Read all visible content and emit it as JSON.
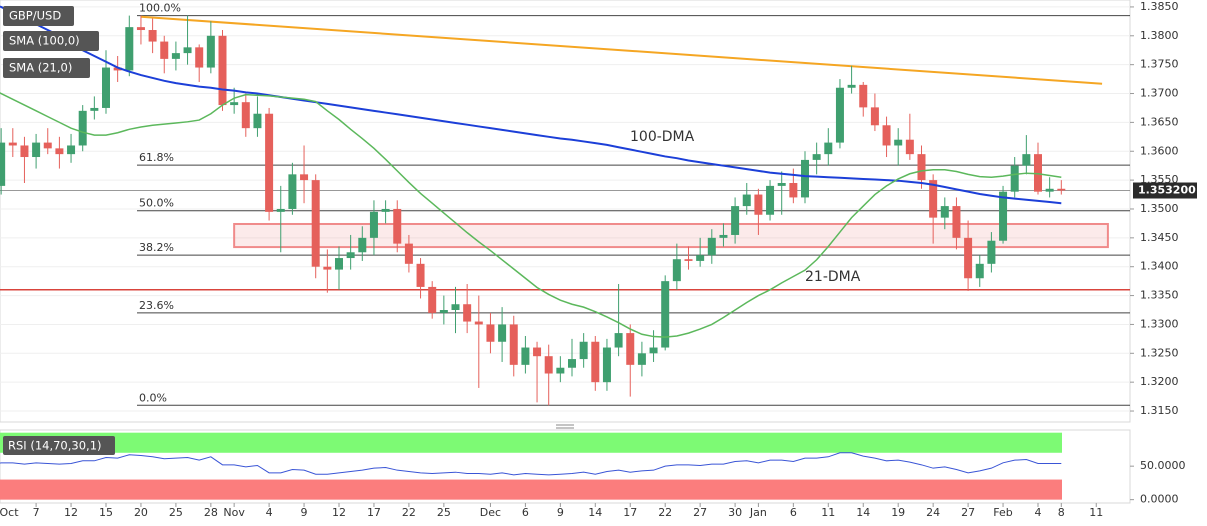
{
  "chart_data": {
    "type": "candlestick",
    "categories": [
      "Oct",
      null,
      null,
      null,
      "7",
      null,
      null,
      "12",
      null,
      null,
      "15",
      null,
      null,
      "20",
      null,
      null,
      "25",
      null,
      null,
      "28",
      null,
      "Nov",
      null,
      null,
      "4",
      null,
      null,
      "9",
      null,
      null,
      "12",
      null,
      null,
      "17",
      null,
      null,
      "22",
      null,
      null,
      "25",
      null,
      null,
      null,
      "Dec",
      null,
      null,
      "6",
      null,
      null,
      "9",
      null,
      null,
      "14",
      null,
      null,
      "17",
      null,
      null,
      "22",
      null,
      null,
      "27",
      null,
      null,
      "30",
      null,
      "Jan",
      null,
      null,
      "6",
      null,
      null,
      "11",
      null,
      null,
      "14",
      null,
      null,
      "19",
      null,
      null,
      "24",
      null,
      null,
      "27",
      null,
      null,
      "Feb",
      null,
      null,
      "4",
      null,
      "8",
      null,
      null,
      "11"
    ],
    "series": [
      {
        "name": "GBP/USD",
        "type": "candlestick",
        "up_color": "#3f9f6f",
        "down_color": "#e5605b",
        "open": [
          1.348,
          1.354,
          1.3615,
          1.361,
          1.359,
          1.3615,
          1.3605,
          1.3595,
          1.361,
          1.367,
          1.3675,
          1.3745,
          1.374,
          1.3815,
          1.381,
          1.379,
          1.376,
          1.377,
          1.378,
          1.3745,
          1.38,
          1.368,
          1.3685,
          1.364,
          1.3665,
          1.3495,
          1.35,
          1.356,
          1.355,
          1.34,
          1.3395,
          1.3415,
          1.3425,
          1.345,
          1.3495,
          1.35,
          1.344,
          1.3405,
          1.3365,
          1.332,
          1.3325,
          1.3335,
          1.3305,
          1.33,
          1.327,
          1.33,
          1.323,
          1.326,
          1.3245,
          1.3215,
          1.3225,
          1.324,
          1.327,
          1.32,
          1.326,
          1.3285,
          1.323,
          1.325,
          1.326,
          1.3375,
          1.3413,
          1.341,
          1.342,
          1.345,
          1.3455,
          1.3505,
          1.3525,
          1.349,
          1.354,
          1.3545,
          1.352,
          1.3585,
          1.3595,
          1.3615,
          1.371,
          1.3715,
          1.3676,
          1.3645,
          1.361,
          1.362,
          1.3595,
          1.355,
          1.3485,
          1.3505,
          1.345,
          1.338,
          1.3405,
          1.3445,
          1.353,
          1.3575,
          1.3595,
          1.353,
          1.3535,
          null,
          null,
          null
        ],
        "high": [
          1.3565,
          1.364,
          1.364,
          1.3625,
          1.363,
          1.364,
          1.3625,
          1.363,
          1.368,
          1.3695,
          1.3775,
          1.3765,
          1.3835,
          1.3835,
          1.383,
          1.38,
          1.379,
          1.3835,
          1.3785,
          1.3825,
          1.381,
          1.371,
          1.37,
          1.3695,
          1.3675,
          1.354,
          1.358,
          1.361,
          1.356,
          1.343,
          1.3435,
          1.3455,
          1.347,
          1.3515,
          1.3515,
          1.3515,
          1.3455,
          1.3415,
          1.3375,
          1.335,
          1.3365,
          1.337,
          1.335,
          1.332,
          1.333,
          1.3315,
          1.328,
          1.327,
          1.3265,
          1.3245,
          1.3275,
          1.3285,
          1.328,
          1.3275,
          1.337,
          1.33,
          1.327,
          1.329,
          1.3385,
          1.344,
          1.3435,
          1.345,
          1.3465,
          1.3475,
          1.352,
          1.3545,
          1.3535,
          1.355,
          1.3565,
          1.357,
          1.36,
          1.3615,
          1.364,
          1.3725,
          1.3748,
          1.372,
          1.37,
          1.366,
          1.364,
          1.3665,
          1.361,
          1.356,
          1.352,
          1.352,
          1.348,
          1.342,
          1.346,
          1.354,
          1.359,
          1.3628,
          1.3615,
          1.3555,
          1.355,
          null,
          null,
          null
        ],
        "low": [
          1.347,
          1.3525,
          1.359,
          1.3545,
          1.357,
          1.3595,
          1.357,
          1.358,
          1.36,
          1.3655,
          1.3665,
          1.372,
          1.373,
          1.3785,
          1.377,
          1.3735,
          1.374,
          1.375,
          1.372,
          1.3735,
          1.367,
          1.3665,
          1.3625,
          1.3625,
          1.348,
          1.3425,
          1.349,
          1.351,
          1.338,
          1.3355,
          1.336,
          1.3395,
          1.341,
          1.342,
          1.3475,
          1.3425,
          1.339,
          1.3345,
          1.331,
          1.33,
          1.3285,
          1.3285,
          1.319,
          1.325,
          1.3235,
          1.321,
          1.3215,
          1.3165,
          1.316,
          1.32,
          1.321,
          1.3225,
          1.3185,
          1.3185,
          1.3245,
          1.3175,
          1.321,
          1.3235,
          1.3255,
          1.336,
          1.3395,
          1.34,
          1.3405,
          1.3435,
          1.344,
          1.349,
          1.3455,
          1.348,
          1.349,
          1.351,
          1.351,
          1.356,
          1.3575,
          1.3605,
          1.37,
          1.366,
          1.3635,
          1.359,
          1.3575,
          1.3585,
          1.3535,
          1.344,
          1.3465,
          1.343,
          1.3358,
          1.3365,
          1.339,
          1.344,
          1.352,
          1.356,
          1.3525,
          1.352,
          1.3525,
          null,
          null,
          null
        ],
        "close": [
          1.354,
          1.3615,
          1.361,
          1.359,
          1.3615,
          1.3605,
          1.3595,
          1.361,
          1.367,
          1.3675,
          1.3745,
          1.374,
          1.3815,
          1.381,
          1.379,
          1.376,
          1.377,
          1.378,
          1.3745,
          1.38,
          1.368,
          1.3685,
          1.364,
          1.3665,
          1.3495,
          1.35,
          1.356,
          1.355,
          1.34,
          1.3395,
          1.3415,
          1.3425,
          1.345,
          1.3495,
          1.35,
          1.344,
          1.3405,
          1.3365,
          1.332,
          1.3325,
          1.3335,
          1.3305,
          1.33,
          1.327,
          1.33,
          1.323,
          1.326,
          1.3245,
          1.3215,
          1.3225,
          1.324,
          1.327,
          1.32,
          1.326,
          1.3285,
          1.323,
          1.325,
          1.326,
          1.3375,
          1.3413,
          1.341,
          1.342,
          1.345,
          1.3455,
          1.3505,
          1.3525,
          1.349,
          1.354,
          1.3545,
          1.352,
          1.3585,
          1.3595,
          1.3615,
          1.371,
          1.3715,
          1.3676,
          1.3645,
          1.361,
          1.362,
          1.3595,
          1.355,
          1.3485,
          1.3505,
          1.345,
          1.338,
          1.3405,
          1.3445,
          1.353,
          1.3575,
          1.3595,
          1.353,
          1.3535,
          1.3532,
          null,
          null,
          null
        ]
      },
      {
        "name": "SMA (100,0)",
        "type": "line",
        "color": "#1c3fd8",
        "values": [
          1.3855,
          1.385,
          1.384,
          1.383,
          1.382,
          1.381,
          1.38,
          1.379,
          1.3775,
          1.3765,
          1.3755,
          1.3745,
          1.3738,
          1.3732,
          1.3727,
          1.3722,
          1.3718,
          1.3715,
          1.3712,
          1.371,
          1.3707,
          1.3705,
          1.3702,
          1.37,
          1.3697,
          1.3694,
          1.3691,
          1.3688,
          1.3685,
          1.3682,
          1.3679,
          1.3676,
          1.3673,
          1.367,
          1.3667,
          1.3664,
          1.3661,
          1.3658,
          1.3655,
          1.3652,
          1.3649,
          1.3646,
          1.3643,
          1.364,
          1.3637,
          1.3634,
          1.3631,
          1.3628,
          1.3625,
          1.3622,
          1.362,
          1.3617,
          1.3614,
          1.3611,
          1.3607,
          1.3603,
          1.3599,
          1.3595,
          1.3591,
          1.3588,
          1.3584,
          1.3581,
          1.3578,
          1.3575,
          1.3572,
          1.3569,
          1.3566,
          1.3563,
          1.3561,
          1.3559,
          1.3557,
          1.3556,
          1.3555,
          1.3554,
          1.3553,
          1.3552,
          1.3551,
          1.355,
          1.3549,
          1.3547,
          1.3545,
          1.3542,
          1.3538,
          1.3534,
          1.353,
          1.3526,
          1.3523,
          1.352,
          1.3518,
          1.3516,
          1.3514,
          1.3512,
          1.351,
          null,
          null,
          null
        ]
      },
      {
        "name": "SMA (21,0)",
        "type": "line",
        "color": "#5cb85c",
        "values": [
          1.371,
          1.37,
          1.369,
          1.368,
          1.367,
          1.366,
          1.365,
          1.364,
          1.3633,
          1.3628,
          1.3628,
          1.3632,
          1.3638,
          1.3642,
          1.3645,
          1.3647,
          1.3649,
          1.3651,
          1.3654,
          1.3665,
          1.368,
          1.3692,
          1.3698,
          1.3697,
          1.3696,
          1.3694,
          1.3692,
          1.369,
          1.3686,
          1.367,
          1.3655,
          1.3638,
          1.3622,
          1.3605,
          1.3586,
          1.3566,
          1.3546,
          1.3527,
          1.351,
          1.3493,
          1.3476,
          1.3459,
          1.3443,
          1.3428,
          1.3412,
          1.3396,
          1.338,
          1.3364,
          1.3352,
          1.3342,
          1.3335,
          1.333,
          1.3322,
          1.3313,
          1.3303,
          1.3292,
          1.3283,
          1.3279,
          1.3278,
          1.328,
          1.3285,
          1.3292,
          1.33,
          1.3312,
          1.3325,
          1.3338,
          1.335,
          1.336,
          1.3372,
          1.3383,
          1.3394,
          1.3412,
          1.3435,
          1.346,
          1.3485,
          1.3505,
          1.3525,
          1.354,
          1.3552,
          1.3561,
          1.3566,
          1.3568,
          1.3568,
          1.3565,
          1.356,
          1.3556,
          1.3555,
          1.3557,
          1.356,
          1.3562,
          1.3561,
          1.3558,
          1.3555,
          null,
          null,
          null
        ]
      }
    ],
    "ylim": [
      1.3131,
      1.3862
    ],
    "yticks": [
      {
        "value": 1.385,
        "label": "1.3850"
      },
      {
        "value": 1.38,
        "label": "1.3800"
      },
      {
        "value": 1.375,
        "label": "1.3750"
      },
      {
        "value": 1.37,
        "label": "1.3700"
      },
      {
        "value": 1.365,
        "label": "1.3650"
      },
      {
        "value": 1.36,
        "label": "1.3600"
      },
      {
        "value": 1.355,
        "label": "1.3550"
      },
      {
        "value": 1.35,
        "label": "1.3500"
      },
      {
        "value": 1.345,
        "label": "1.3450"
      },
      {
        "value": 1.34,
        "label": "1.3400"
      },
      {
        "value": 1.335,
        "label": "1.3350"
      },
      {
        "value": 1.33,
        "label": "1.3300"
      },
      {
        "value": 1.325,
        "label": "1.3250"
      },
      {
        "value": 1.32,
        "label": "1.3200"
      },
      {
        "value": 1.315,
        "label": "1.3150"
      }
    ],
    "grid": true,
    "fib_levels": [
      {
        "value": 1.3835,
        "label": "100.0%"
      },
      {
        "value": 1.3576,
        "label": "61.8%"
      },
      {
        "value": 1.3497,
        "label": "50.0%"
      },
      {
        "value": 1.342,
        "label": "38.2%"
      },
      {
        "value": 1.332,
        "label": "23.6%"
      },
      {
        "value": 1.316,
        "label": "0.0%"
      }
    ],
    "support_line": {
      "value": 1.336,
      "color": "#d9443c"
    },
    "trendline": {
      "x": [
        13,
        95.5
      ],
      "y": [
        1.3833,
        1.3717
      ],
      "color": "#f5a623"
    },
    "zone": {
      "x": [
        21,
        96
      ],
      "y": [
        1.3434,
        1.3474
      ],
      "color": "#f08a8a"
    },
    "annotations": [
      {
        "text": "100-DMA",
        "color": "#6a4fc8"
      },
      {
        "text": "21-DMA",
        "color": "#4caf50"
      }
    ],
    "last_price": {
      "value": 1.3532,
      "label": "1.353200"
    },
    "rsi": {
      "name": "RSI (14,70,30,1)",
      "color": "#3a55d6",
      "overbought": 70,
      "oversold": 30,
      "values": [
        50,
        55,
        55,
        53,
        55,
        54,
        53,
        54,
        58,
        58,
        63,
        62,
        67,
        66,
        64,
        61,
        62,
        63,
        59,
        64,
        52,
        52,
        49,
        51,
        40,
        40,
        45,
        44,
        38,
        38,
        40,
        42,
        44,
        47,
        48,
        44,
        42,
        40,
        39,
        40,
        41,
        39,
        39,
        38,
        40,
        37,
        39,
        38,
        37,
        38,
        39,
        41,
        38,
        42,
        44,
        41,
        43,
        44,
        50,
        52,
        52,
        51,
        53,
        53,
        57,
        58,
        55,
        59,
        59,
        57,
        62,
        62,
        64,
        70,
        70,
        65,
        62,
        58,
        59,
        56,
        52,
        47,
        49,
        45,
        40,
        43,
        47,
        55,
        59,
        60,
        54,
        54,
        54,
        null,
        null,
        null
      ],
      "ylim": [
        -5,
        104
      ],
      "yticks": [
        {
          "value": 50,
          "label": "50.0000"
        },
        {
          "value": 0,
          "label": "0.0000"
        }
      ]
    }
  }
}
